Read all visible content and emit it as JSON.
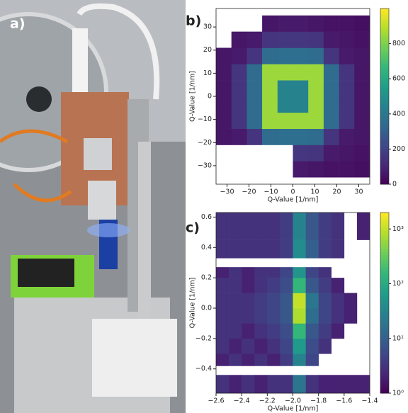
{
  "photo": {
    "label": "a)"
  },
  "chart_data": [
    {
      "type": "heatmap",
      "panel": "b)",
      "xlabel": "Q-Value [1/nm]",
      "ylabel": "Q-Value [1/nm]",
      "xbins": [
        -35,
        -28,
        -21,
        -14,
        -7,
        0,
        7,
        14,
        21,
        28,
        35
      ],
      "ybins": [
        -35,
        -28,
        -21,
        -14,
        -7,
        0,
        7,
        14,
        21,
        28,
        35
      ],
      "z": [
        [
          null,
          null,
          null,
          null,
          null,
          70,
          60,
          50,
          50,
          40
        ],
        [
          null,
          null,
          null,
          null,
          null,
          160,
          150,
          70,
          60,
          50
        ],
        [
          60,
          70,
          150,
          350,
          360,
          360,
          350,
          150,
          70,
          60
        ],
        [
          60,
          150,
          350,
          850,
          850,
          850,
          850,
          350,
          150,
          60
        ],
        [
          60,
          150,
          350,
          850,
          450,
          450,
          850,
          350,
          150,
          60
        ],
        [
          60,
          150,
          350,
          850,
          450,
          450,
          850,
          350,
          150,
          60
        ],
        [
          60,
          150,
          350,
          850,
          850,
          850,
          850,
          350,
          150,
          60
        ],
        [
          60,
          70,
          150,
          350,
          360,
          360,
          350,
          150,
          70,
          60
        ],
        [
          null,
          60,
          70,
          150,
          160,
          160,
          150,
          70,
          60,
          50
        ],
        [
          null,
          null,
          null,
          60,
          70,
          70,
          60,
          50,
          50,
          40
        ]
      ],
      "xlim": [
        -35,
        35
      ],
      "ylim": [
        -38,
        38
      ],
      "xticks": [
        {
          "value": -30,
          "label": "−30"
        },
        {
          "value": -20,
          "label": "−20"
        },
        {
          "value": -10,
          "label": "−10"
        },
        0,
        10,
        20,
        30
      ],
      "yticks": [
        {
          "value": -30,
          "label": "−30"
        },
        {
          "value": -20,
          "label": "−20"
        },
        {
          "value": -10,
          "label": "−10"
        },
        0,
        10,
        20,
        30
      ],
      "colormap": "viridis",
      "log": false,
      "clim": [
        0,
        1000
      ],
      "cticks": [
        0,
        200,
        400,
        600,
        800
      ]
    },
    {
      "type": "heatmap",
      "panel": "c)",
      "xlabel": "Q-Value [1/nm]",
      "ylabel": "Q-Value [1/nm]",
      "xbins": [
        -2.6,
        -2.5,
        -2.4,
        -2.3,
        -2.2,
        -2.1,
        -2.0,
        -1.9,
        -1.8,
        -1.7,
        -1.6,
        -1.5,
        -1.4
      ],
      "ybins": [
        -0.56,
        -0.44,
        -0.38,
        -0.3,
        -0.2,
        -0.1,
        0,
        0.1,
        0.2,
        0.27,
        0.33,
        0.45,
        0.63
      ],
      "z": [
        [
          3,
          2,
          3,
          2,
          3,
          3,
          20,
          3,
          2,
          2,
          2,
          2
        ],
        [
          null,
          null,
          null,
          null,
          null,
          null,
          null,
          null,
          null,
          null,
          null,
          null
        ],
        [
          2,
          3,
          2,
          3,
          2,
          4,
          30,
          5,
          null,
          null,
          null,
          null
        ],
        [
          3,
          2,
          3,
          2,
          3,
          5,
          60,
          6,
          3,
          null,
          null,
          null
        ],
        [
          3,
          3,
          2,
          3,
          4,
          6,
          150,
          8,
          4,
          2,
          null,
          null
        ],
        [
          3,
          3,
          3,
          4,
          5,
          8,
          800,
          15,
          5,
          3,
          2,
          null
        ],
        [
          3,
          3,
          3,
          4,
          5,
          8,
          1000,
          20,
          5,
          3,
          2,
          null
        ],
        [
          3,
          3,
          2,
          3,
          4,
          6,
          150,
          8,
          4,
          2,
          null,
          null
        ],
        [
          2,
          3,
          2,
          3,
          3,
          5,
          50,
          5,
          3,
          null,
          null,
          null
        ],
        [
          null,
          null,
          null,
          null,
          null,
          null,
          null,
          null,
          null,
          null,
          null,
          null
        ],
        [
          3,
          3,
          3,
          3,
          3,
          4,
          40,
          10,
          4,
          3,
          null,
          null
        ],
        [
          3,
          3,
          3,
          3,
          3,
          4,
          30,
          8,
          4,
          3,
          null,
          2
        ]
      ],
      "xlim": [
        -2.6,
        -1.4
      ],
      "ylim": [
        -0.56,
        0.63
      ],
      "xticks": [
        {
          "value": -2.6,
          "label": "−2.6"
        },
        {
          "value": -2.4,
          "label": "−2.4"
        },
        {
          "value": -2.2,
          "label": "−2.2"
        },
        {
          "value": -2.0,
          "label": "−2.0"
        },
        {
          "value": -1.8,
          "label": "−1.8"
        },
        {
          "value": -1.6,
          "label": "−1.6"
        },
        {
          "value": -1.4,
          "label": "−1.4"
        }
      ],
      "yticks": [
        {
          "value": -0.4,
          "label": "−0.4"
        },
        {
          "value": -0.2,
          "label": "−0.2"
        },
        {
          "value": 0,
          "label": "0.0"
        },
        0.2,
        0.4,
        0.6
      ],
      "colormap": "viridis",
      "log": true,
      "clim": [
        1,
        2000
      ],
      "cticks": [
        {
          "value": 1,
          "label": "10⁰"
        },
        {
          "value": 10,
          "label": "10¹"
        },
        {
          "value": 100,
          "label": "10²"
        },
        {
          "value": 1000,
          "label": "10³"
        }
      ]
    }
  ]
}
